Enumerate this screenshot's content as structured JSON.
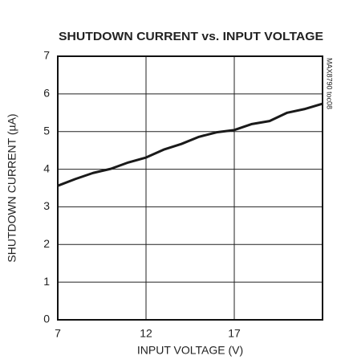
{
  "chart_data": {
    "type": "line",
    "title": "SHUTDOWN CURRENT vs. INPUT VOLTAGE",
    "xlabel": "INPUT VOLTAGE (V)",
    "ylabel": "SHUTDOWN CURRENT (µA)",
    "annotation": "MAX8790 toc08",
    "x": [
      7,
      8,
      9,
      10,
      11,
      12,
      13,
      14,
      15,
      16,
      17,
      18,
      19,
      20,
      21,
      22
    ],
    "series": [
      {
        "name": "shutdown current",
        "color": "#1a1a1a",
        "values": [
          3.56,
          3.74,
          3.9,
          4.01,
          4.18,
          4.31,
          4.52,
          4.67,
          4.86,
          4.98,
          5.04,
          5.2,
          5.28,
          5.5,
          5.6,
          5.74
        ]
      }
    ],
    "xlim": [
      7,
      22
    ],
    "xticks": [
      7,
      12,
      17
    ],
    "ylim": [
      0,
      7
    ],
    "yticks": [
      0,
      1,
      2,
      3,
      4,
      5,
      6,
      7
    ],
    "grid": true
  }
}
